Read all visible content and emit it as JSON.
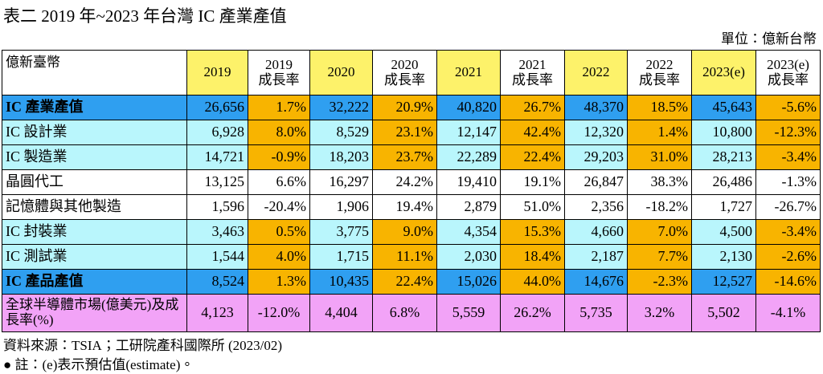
{
  "header": {
    "title": "表二 2019 年~2023 年台灣 IC 產業產值",
    "unit": "單位：億新台幣"
  },
  "table": {
    "columns": [
      [
        "億新臺幣"
      ],
      [
        "2019"
      ],
      [
        "2019",
        "成長率"
      ],
      [
        "2020"
      ],
      [
        "2020",
        "成長率"
      ],
      [
        "2021"
      ],
      [
        "2021",
        "成長率"
      ],
      [
        "2022"
      ],
      [
        "2022",
        "成長率"
      ],
      [
        "2023(e)"
      ],
      [
        "2023(e)",
        "成長率"
      ]
    ],
    "rows": [
      [
        "IC 產業產值",
        "26,656",
        "1.7%",
        "32,222",
        "20.9%",
        "40,820",
        "26.7%",
        "48,370",
        "18.5%",
        "45,643",
        "-5.6%"
      ],
      [
        "IC 設計業",
        "6,928",
        "8.0%",
        "8,529",
        "23.1%",
        "12,147",
        "42.4%",
        "12,320",
        "1.4%",
        "10,800",
        "-12.3%"
      ],
      [
        "IC 製造業",
        "14,721",
        "-0.9%",
        "18,203",
        "23.7%",
        "22,289",
        "22.4%",
        "29,203",
        "31.0%",
        "28,213",
        "-3.4%"
      ],
      [
        "晶圓代工",
        "13,125",
        "6.6%",
        "16,297",
        "24.2%",
        "19,410",
        "19.1%",
        "26,847",
        "38.3%",
        "26,486",
        "-1.3%"
      ],
      [
        "記憶體與其他製造",
        "1,596",
        "-20.4%",
        "1,906",
        "19.4%",
        "2,879",
        "51.0%",
        "2,356",
        "-18.2%",
        "1,727",
        "-26.7%"
      ],
      [
        "IC 封裝業",
        "3,463",
        "0.5%",
        "3,775",
        "9.0%",
        "4,354",
        "15.3%",
        "4,660",
        "7.0%",
        "4,500",
        "-3.4%"
      ],
      [
        "IC 測試業",
        "1,544",
        "4.0%",
        "1,715",
        "11.1%",
        "2,030",
        "18.4%",
        "2,187",
        "7.7%",
        "2,130",
        "-2.6%"
      ],
      [
        "IC 產品產值",
        "8,524",
        "1.3%",
        "10,435",
        "22.4%",
        "15,026",
        "44.0%",
        "14,676",
        "-2.3%",
        "12,527",
        "-14.6%"
      ],
      [
        "全球半導體市場(億美元)及成長率(%)",
        "4,123",
        "-12.0%",
        "4,404",
        "6.8%",
        "5,559",
        "26.2%",
        "5,735",
        "3.2%",
        "5,502",
        "-4.1%"
      ]
    ]
  },
  "footer": {
    "source": "資料來源：TSIA；工研院產科國際所 (2023/02)",
    "note": "● 註：(e)表示預估值(estimate)。"
  }
}
